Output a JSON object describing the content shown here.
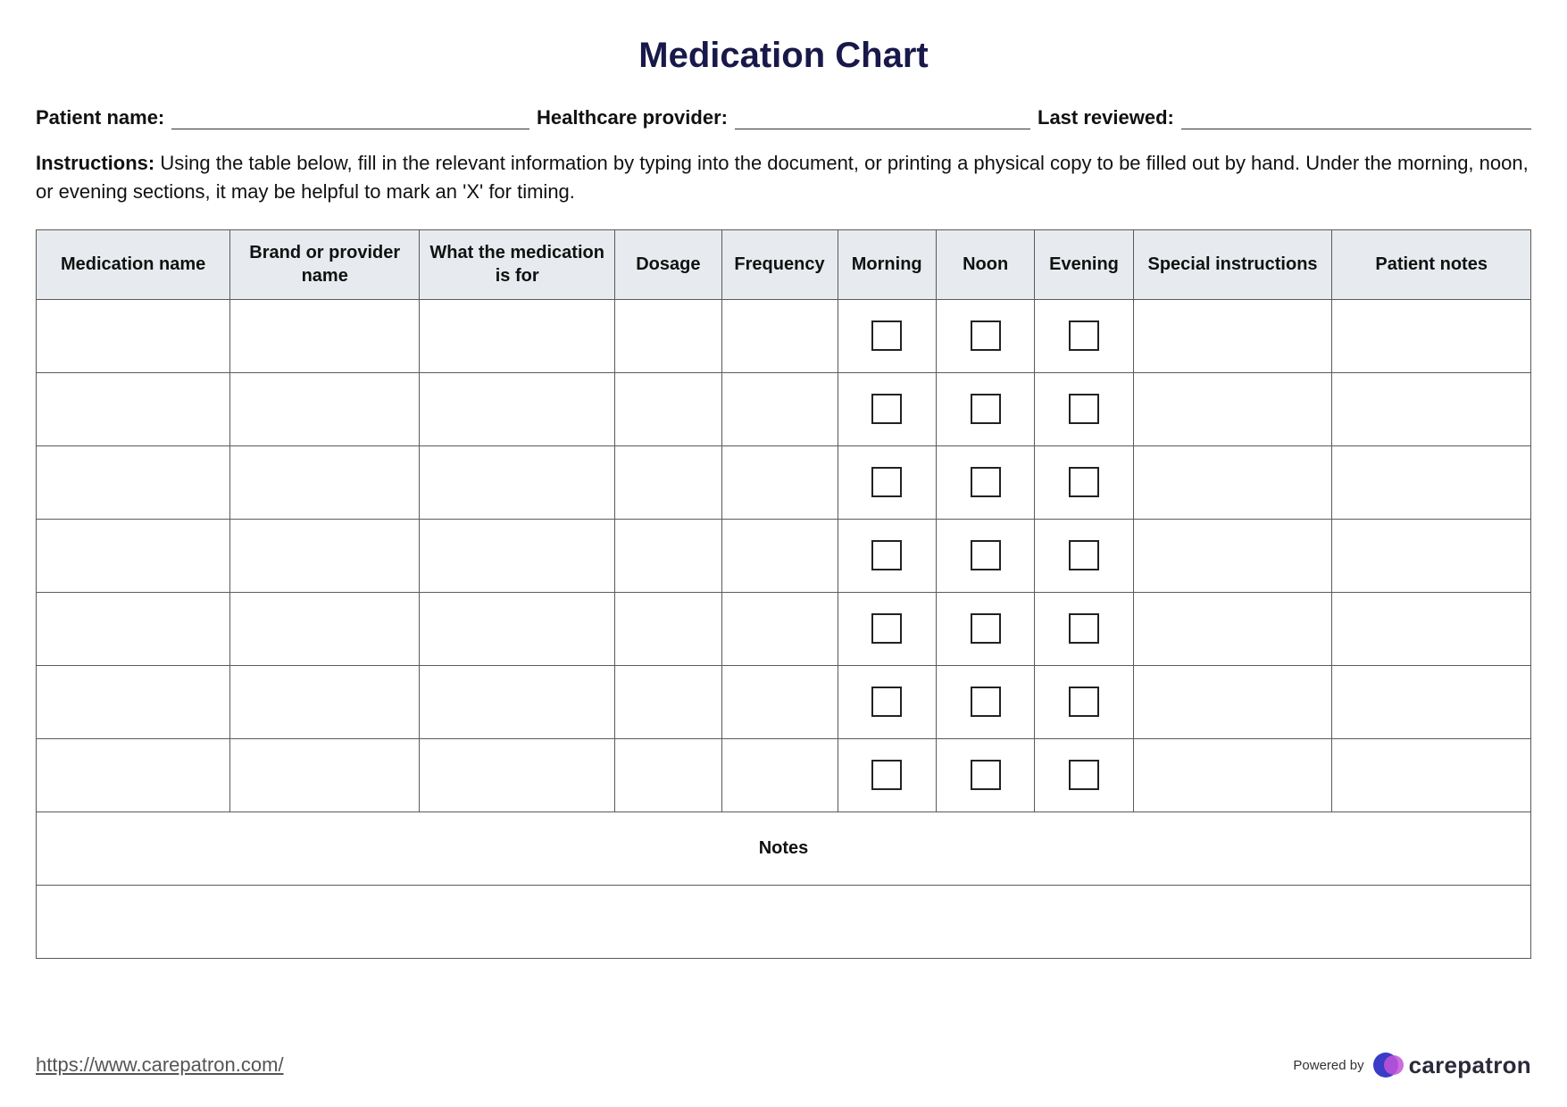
{
  "title": "Medication Chart",
  "title_color": "#18194a",
  "fields": {
    "patient_name": {
      "label": "Patient name:",
      "value": ""
    },
    "healthcare_provider": {
      "label": "Healthcare provider:",
      "value": ""
    },
    "last_reviewed": {
      "label": "Last reviewed:",
      "value": ""
    }
  },
  "instructions_label": "Instructions:",
  "instructions_text": "Using the table below, fill in the relevant information by typing into the document, or printing a physical copy to be filled out by hand. Under the morning, noon, or evening sections, it may be helpful to mark an 'X' for timing.",
  "table": {
    "header_bg": "#e7ebef",
    "border_color": "#5a5a5a",
    "columns": [
      "Medication name",
      "Brand or provider name",
      "What the medication is for",
      "Dosage",
      "Frequency",
      "Morning",
      "Noon",
      "Evening",
      "Special instructions",
      "Patient notes"
    ],
    "checkbox_cols": [
      5,
      6,
      7
    ],
    "row_count": 7,
    "rows": [
      {
        "medication_name": "",
        "brand": "",
        "purpose": "",
        "dosage": "",
        "frequency": "",
        "morning": false,
        "noon": false,
        "evening": false,
        "special": "",
        "patient_notes": ""
      },
      {
        "medication_name": "",
        "brand": "",
        "purpose": "",
        "dosage": "",
        "frequency": "",
        "morning": false,
        "noon": false,
        "evening": false,
        "special": "",
        "patient_notes": ""
      },
      {
        "medication_name": "",
        "brand": "",
        "purpose": "",
        "dosage": "",
        "frequency": "",
        "morning": false,
        "noon": false,
        "evening": false,
        "special": "",
        "patient_notes": ""
      },
      {
        "medication_name": "",
        "brand": "",
        "purpose": "",
        "dosage": "",
        "frequency": "",
        "morning": false,
        "noon": false,
        "evening": false,
        "special": "",
        "patient_notes": ""
      },
      {
        "medication_name": "",
        "brand": "",
        "purpose": "",
        "dosage": "",
        "frequency": "",
        "morning": false,
        "noon": false,
        "evening": false,
        "special": "",
        "patient_notes": ""
      },
      {
        "medication_name": "",
        "brand": "",
        "purpose": "",
        "dosage": "",
        "frequency": "",
        "morning": false,
        "noon": false,
        "evening": false,
        "special": "",
        "patient_notes": ""
      },
      {
        "medication_name": "",
        "brand": "",
        "purpose": "",
        "dosage": "",
        "frequency": "",
        "morning": false,
        "noon": false,
        "evening": false,
        "special": "",
        "patient_notes": ""
      }
    ],
    "notes_label": "Notes",
    "notes_value": ""
  },
  "footer": {
    "link_text": "https://www.carepatron.com/",
    "powered_label": "Powered by",
    "brand_name": "carepatron",
    "brand_color_1": "#3a3cc7",
    "brand_color_2": "#c253d9"
  }
}
